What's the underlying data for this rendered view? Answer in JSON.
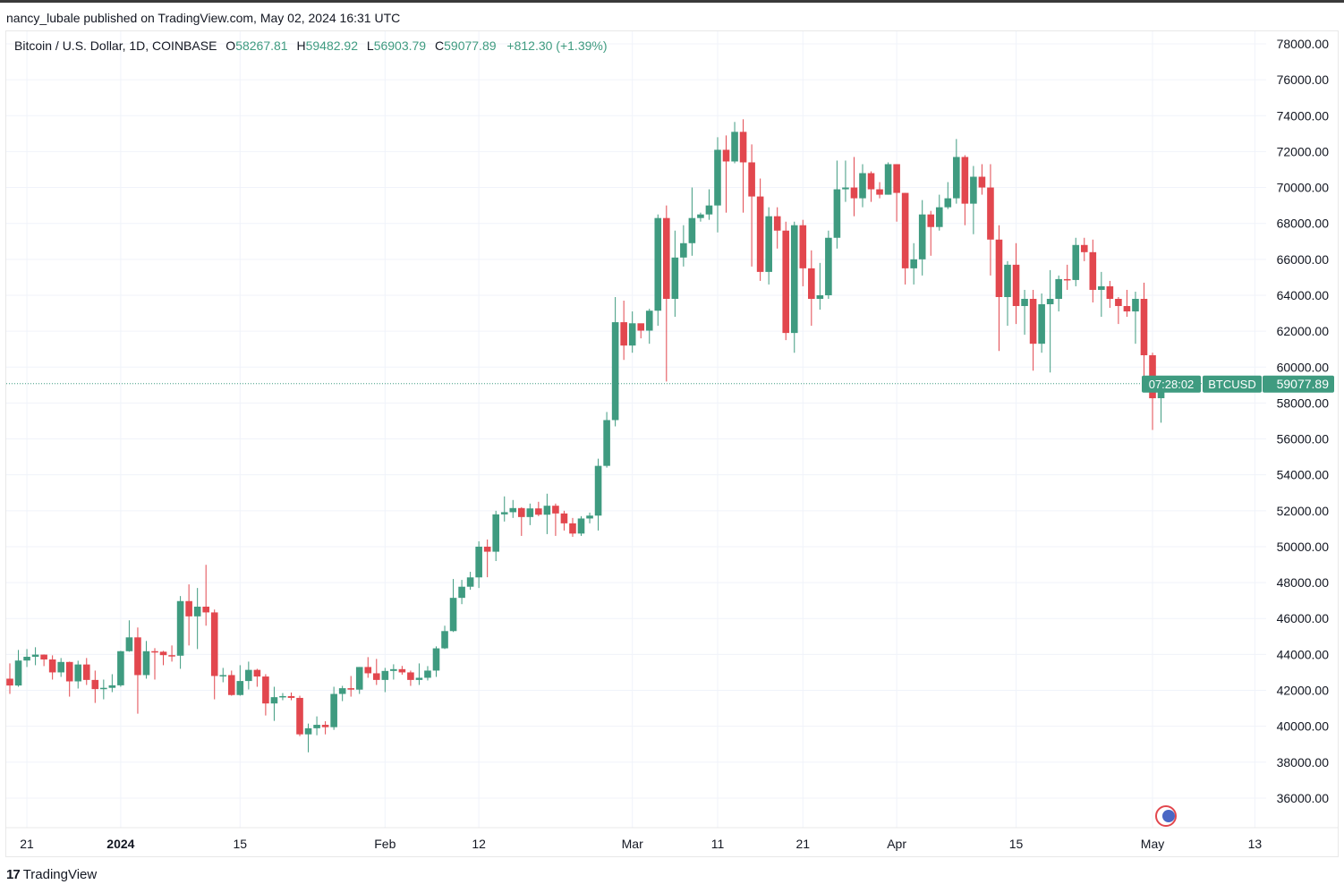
{
  "header": {
    "published": "nancy_lubale published on TradingView.com, May 02, 2024 16:31 UTC"
  },
  "legend": {
    "symbol": "Bitcoin / U.S. Dollar, 1D, COINBASE",
    "o_label": "O",
    "o": "58267.81",
    "h_label": "H",
    "h": "59482.92",
    "l_label": "L",
    "l": "56903.79",
    "c_label": "C",
    "c": "59077.89",
    "change": "+812.30 (+1.39%)"
  },
  "footer": {
    "brand": "TradingView",
    "logo_icon": "tradingview-logo-icon"
  },
  "price_label": {
    "symbol": "BTCUSD",
    "price": "59077.89",
    "countdown": "07:28:02"
  },
  "colors": {
    "up": "#3f9b80",
    "down": "#e2474e",
    "price_line": "#3f9b80"
  },
  "chart_data": {
    "type": "candlestick",
    "title": "Bitcoin / U.S. Dollar, 1D, COINBASE",
    "ylim": [
      35000,
      78500
    ],
    "y_ticks": [
      "36000.00",
      "38000.00",
      "40000.00",
      "42000.00",
      "44000.00",
      "46000.00",
      "48000.00",
      "50000.00",
      "52000.00",
      "54000.00",
      "56000.00",
      "58000.00",
      "60000.00",
      "62000.00",
      "64000.00",
      "66000.00",
      "68000.00",
      "70000.00",
      "72000.00",
      "74000.00",
      "76000.00",
      "78000.00"
    ],
    "x_ticks": [
      {
        "date": "2023-12-21",
        "label": "21"
      },
      {
        "date": "2024-01-01",
        "label": "2024",
        "bold": true
      },
      {
        "date": "2024-01-15",
        "label": "15"
      },
      {
        "date": "2024-02-01",
        "label": "Feb"
      },
      {
        "date": "2024-02-12",
        "label": "12"
      },
      {
        "date": "2024-03-01",
        "label": "Mar"
      },
      {
        "date": "2024-03-11",
        "label": "11"
      },
      {
        "date": "2024-03-21",
        "label": "21"
      },
      {
        "date": "2024-04-01",
        "label": "Apr"
      },
      {
        "date": "2024-04-15",
        "label": "15"
      },
      {
        "date": "2024-05-01",
        "label": "May"
      },
      {
        "date": "2024-05-13",
        "label": "13"
      }
    ],
    "last_price": 59077.89,
    "grid": true,
    "ohlc_columns": [
      "date",
      "open",
      "high",
      "low",
      "close"
    ],
    "candles": [
      [
        "2023-12-19",
        42650,
        43500,
        41800,
        42270
      ],
      [
        "2023-12-20",
        42270,
        44250,
        42200,
        43660
      ],
      [
        "2023-12-21",
        43660,
        44300,
        43300,
        43870
      ],
      [
        "2023-12-22",
        43870,
        44400,
        43400,
        43990
      ],
      [
        "2023-12-23",
        43990,
        44000,
        43350,
        43720
      ],
      [
        "2023-12-24",
        43720,
        43950,
        42600,
        43000
      ],
      [
        "2023-12-25",
        43000,
        43800,
        42750,
        43580
      ],
      [
        "2023-12-26",
        43580,
        43600,
        41650,
        42500
      ],
      [
        "2023-12-27",
        42500,
        43650,
        42100,
        43440
      ],
      [
        "2023-12-28",
        43440,
        43800,
        42300,
        42580
      ],
      [
        "2023-12-29",
        42580,
        43100,
        41300,
        42070
      ],
      [
        "2023-12-30",
        42070,
        42600,
        41500,
        42140
      ],
      [
        "2023-12-31",
        42140,
        42900,
        41900,
        42280
      ],
      [
        "2024-01-01",
        42280,
        44200,
        42200,
        44180
      ],
      [
        "2024-01-02",
        44180,
        45900,
        44150,
        44950
      ],
      [
        "2024-01-03",
        44950,
        45500,
        40700,
        42850
      ],
      [
        "2024-01-04",
        42850,
        44750,
        42650,
        44180
      ],
      [
        "2024-01-05",
        44180,
        44350,
        42600,
        44150
      ],
      [
        "2024-01-06",
        44150,
        44200,
        43400,
        43960
      ],
      [
        "2024-01-07",
        43960,
        44500,
        43600,
        43930
      ],
      [
        "2024-01-08",
        43930,
        47250,
        43200,
        46970
      ],
      [
        "2024-01-09",
        46970,
        47900,
        44500,
        46120
      ],
      [
        "2024-01-10",
        46120,
        47700,
        44300,
        46660
      ],
      [
        "2024-01-11",
        46660,
        48990,
        45600,
        46340
      ],
      [
        "2024-01-12",
        46340,
        46500,
        41500,
        42800
      ],
      [
        "2024-01-13",
        42800,
        43250,
        42450,
        42850
      ],
      [
        "2024-01-14",
        42850,
        43100,
        41700,
        41740
      ],
      [
        "2024-01-15",
        41740,
        43400,
        41700,
        42520
      ],
      [
        "2024-01-16",
        42520,
        43600,
        42050,
        43140
      ],
      [
        "2024-01-17",
        43140,
        43200,
        42200,
        42770
      ],
      [
        "2024-01-18",
        42770,
        42900,
        40600,
        41270
      ],
      [
        "2024-01-19",
        41270,
        42200,
        40300,
        41620
      ],
      [
        "2024-01-20",
        41620,
        41850,
        41450,
        41680
      ],
      [
        "2024-01-21",
        41680,
        41880,
        41450,
        41580
      ],
      [
        "2024-01-22",
        41580,
        41700,
        39450,
        39550
      ],
      [
        "2024-01-23",
        39550,
        40150,
        38550,
        39890
      ],
      [
        "2024-01-24",
        39890,
        40550,
        39500,
        40080
      ],
      [
        "2024-01-25",
        40080,
        40280,
        39550,
        39950
      ],
      [
        "2024-01-26",
        39950,
        42200,
        39800,
        41800
      ],
      [
        "2024-01-27",
        41800,
        42250,
        41400,
        42120
      ],
      [
        "2024-01-28",
        42120,
        42800,
        41650,
        42040
      ],
      [
        "2024-01-29",
        42040,
        43300,
        41800,
        43300
      ],
      [
        "2024-01-30",
        43300,
        43850,
        42700,
        42950
      ],
      [
        "2024-01-31",
        42950,
        43750,
        42300,
        42580
      ],
      [
        "2024-02-01",
        42580,
        43250,
        41900,
        43080
      ],
      [
        "2024-02-02",
        43080,
        43450,
        42600,
        43180
      ],
      [
        "2024-02-03",
        43180,
        43360,
        42870,
        43000
      ],
      [
        "2024-02-04",
        43000,
        43100,
        42250,
        42580
      ],
      [
        "2024-02-05",
        42580,
        43500,
        42300,
        42700
      ],
      [
        "2024-02-06",
        42700,
        43350,
        42550,
        43100
      ],
      [
        "2024-02-07",
        43100,
        44450,
        42750,
        44340
      ],
      [
        "2024-02-08",
        44340,
        45600,
        44300,
        45300
      ],
      [
        "2024-02-09",
        45300,
        48200,
        45250,
        47150
      ],
      [
        "2024-02-10",
        47150,
        48150,
        46800,
        47770
      ],
      [
        "2024-02-11",
        47770,
        48600,
        47600,
        48290
      ],
      [
        "2024-02-12",
        48290,
        50300,
        47700,
        50000
      ],
      [
        "2024-02-13",
        50000,
        50400,
        48300,
        49720
      ],
      [
        "2024-02-14",
        49720,
        52000,
        49200,
        51800
      ],
      [
        "2024-02-15",
        51800,
        52800,
        51400,
        51920
      ],
      [
        "2024-02-16",
        51920,
        52600,
        51600,
        52150
      ],
      [
        "2024-02-17",
        52150,
        52200,
        50600,
        51650
      ],
      [
        "2024-02-18",
        51650,
        52400,
        51200,
        52130
      ],
      [
        "2024-02-19",
        52130,
        52500,
        51700,
        51780
      ],
      [
        "2024-02-20",
        51780,
        52950,
        50700,
        52280
      ],
      [
        "2024-02-21",
        52280,
        52400,
        50600,
        51850
      ],
      [
        "2024-02-22",
        51850,
        52000,
        50900,
        51300
      ],
      [
        "2024-02-23",
        51300,
        51600,
        50550,
        50730
      ],
      [
        "2024-02-24",
        50730,
        51700,
        50600,
        51570
      ],
      [
        "2024-02-25",
        51570,
        51900,
        51300,
        51730
      ],
      [
        "2024-02-26",
        51730,
        54900,
        50900,
        54500
      ],
      [
        "2024-02-27",
        54500,
        57500,
        54400,
        57050
      ],
      [
        "2024-02-28",
        57050,
        63900,
        56700,
        62500
      ],
      [
        "2024-02-29",
        62500,
        63700,
        60400,
        61200
      ],
      [
        "2024-03-01",
        61200,
        63100,
        60800,
        62440
      ],
      [
        "2024-03-02",
        62440,
        62400,
        61600,
        62030
      ],
      [
        "2024-03-03",
        62030,
        63250,
        61300,
        63140
      ],
      [
        "2024-03-04",
        63140,
        68500,
        62300,
        68300
      ],
      [
        "2024-03-05",
        68300,
        69000,
        59200,
        63800
      ],
      [
        "2024-03-06",
        63800,
        67600,
        62800,
        66100
      ],
      [
        "2024-03-07",
        66100,
        67900,
        65600,
        66900
      ],
      [
        "2024-03-08",
        66900,
        70000,
        66200,
        68300
      ],
      [
        "2024-03-09",
        68300,
        68600,
        68100,
        68500
      ],
      [
        "2024-03-10",
        68500,
        69900,
        68200,
        69000
      ],
      [
        "2024-03-11",
        69000,
        72800,
        67500,
        72100
      ],
      [
        "2024-03-12",
        72100,
        72900,
        68600,
        71450
      ],
      [
        "2024-03-13",
        71450,
        73650,
        71350,
        73100
      ],
      [
        "2024-03-14",
        73100,
        73800,
        68600,
        71400
      ],
      [
        "2024-03-15",
        71400,
        72400,
        65600,
        69500
      ],
      [
        "2024-03-16",
        69500,
        70500,
        64800,
        65300
      ],
      [
        "2024-03-17",
        65300,
        68900,
        64600,
        68400
      ],
      [
        "2024-03-18",
        68400,
        68900,
        66600,
        67600
      ],
      [
        "2024-03-19",
        67600,
        68100,
        61500,
        61900
      ],
      [
        "2024-03-20",
        61900,
        68100,
        60800,
        67900
      ],
      [
        "2024-03-21",
        67900,
        68200,
        64500,
        65500
      ],
      [
        "2024-03-22",
        65500,
        66500,
        62300,
        63800
      ],
      [
        "2024-03-23",
        63800,
        65800,
        63200,
        64000
      ],
      [
        "2024-03-24",
        64000,
        67600,
        63800,
        67200
      ],
      [
        "2024-03-25",
        67200,
        71500,
        66600,
        69900
      ],
      [
        "2024-03-26",
        69900,
        71500,
        69200,
        70000
      ],
      [
        "2024-03-27",
        70000,
        71700,
        68400,
        69400
      ],
      [
        "2024-03-28",
        69400,
        71300,
        68900,
        70800
      ],
      [
        "2024-03-29",
        70800,
        70900,
        69200,
        69900
      ],
      [
        "2024-03-30",
        69900,
        70300,
        69400,
        69600
      ],
      [
        "2024-03-31",
        69600,
        71400,
        69600,
        71300
      ],
      [
        "2024-04-01",
        71300,
        71300,
        68100,
        69700
      ],
      [
        "2024-04-02",
        69700,
        69700,
        64600,
        65500
      ],
      [
        "2024-04-03",
        65500,
        66900,
        64600,
        66000
      ],
      [
        "2024-04-04",
        66000,
        69300,
        65100,
        68500
      ],
      [
        "2024-04-05",
        68500,
        68700,
        66200,
        67800
      ],
      [
        "2024-04-06",
        67800,
        69600,
        67600,
        68900
      ],
      [
        "2024-04-07",
        68900,
        70300,
        68800,
        69400
      ],
      [
        "2024-04-08",
        69400,
        72700,
        69100,
        71700
      ],
      [
        "2024-04-09",
        71700,
        71800,
        67900,
        69100
      ],
      [
        "2024-04-10",
        69100,
        71200,
        67400,
        70600
      ],
      [
        "2024-04-11",
        70600,
        71300,
        69600,
        70000
      ],
      [
        "2024-04-12",
        70000,
        71300,
        65100,
        67100
      ],
      [
        "2024-04-13",
        67100,
        67900,
        60900,
        63900
      ],
      [
        "2024-04-14",
        63900,
        65900,
        62300,
        65700
      ],
      [
        "2024-04-15",
        65700,
        66900,
        62400,
        63400
      ],
      [
        "2024-04-16",
        63400,
        64300,
        61800,
        63800
      ],
      [
        "2024-04-17",
        63800,
        64300,
        59800,
        61300
      ],
      [
        "2024-04-18",
        61300,
        64100,
        60800,
        63500
      ],
      [
        "2024-04-19",
        63500,
        65400,
        59700,
        63800
      ],
      [
        "2024-04-20",
        63800,
        65100,
        63100,
        64900
      ],
      [
        "2024-04-21",
        64900,
        65700,
        64300,
        64850
      ],
      [
        "2024-04-22",
        64850,
        67200,
        64500,
        66800
      ],
      [
        "2024-04-23",
        66800,
        67200,
        65900,
        66400
      ],
      [
        "2024-04-24",
        66400,
        67100,
        63600,
        64300
      ],
      [
        "2024-04-25",
        64300,
        65300,
        62800,
        64500
      ],
      [
        "2024-04-26",
        64500,
        64800,
        63300,
        63800
      ],
      [
        "2024-04-27",
        63800,
        63900,
        62400,
        63400
      ],
      [
        "2024-04-28",
        63400,
        64300,
        62800,
        63100
      ],
      [
        "2024-04-29",
        63100,
        64200,
        61300,
        63800
      ],
      [
        "2024-04-30",
        63800,
        64700,
        59100,
        60660
      ],
      [
        "2024-05-01",
        60660,
        60800,
        56500,
        58265.59
      ],
      [
        "2024-05-02",
        58267.81,
        59482.92,
        56903.79,
        59077.89
      ]
    ]
  }
}
